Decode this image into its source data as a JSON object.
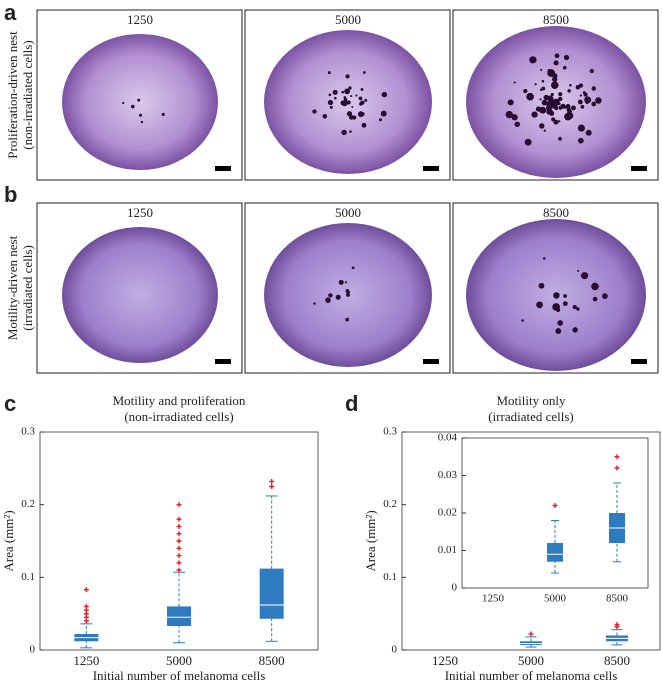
{
  "panel_a": {
    "label": "a",
    "side_label": [
      "Proliferation-driven nest",
      "(non-irradiated cells)"
    ],
    "captions": [
      "1250",
      "5000",
      "8500"
    ]
  },
  "panel_b": {
    "label": "b",
    "side_label": [
      "Motility-driven nest",
      "(irradiated cells)"
    ],
    "captions": [
      "1250",
      "5000",
      "8500"
    ]
  },
  "chart_data": [
    {
      "type": "box",
      "panel_label": "c",
      "title": "Motility and proliferation",
      "subtitle": "(non-irradiated cells)",
      "xlabel": "Initial number of melanoma cells",
      "ylabel": "Area (mm²)",
      "categories": [
        "1250",
        "5000",
        "8500"
      ],
      "color": "#2f7bbf",
      "outlier_color": "#e0202a",
      "ylim": [
        0,
        0.3
      ],
      "yticks": [
        0,
        0.1,
        0.2,
        0.3
      ],
      "low": [
        0.003,
        0.01,
        0.012
      ],
      "q1": [
        0.012,
        0.033,
        0.043
      ],
      "median": [
        0.017,
        0.045,
        0.062
      ],
      "q3": [
        0.022,
        0.06,
        0.112
      ],
      "high": [
        0.036,
        0.107,
        0.212
      ],
      "outliers": [
        [
          0.04,
          0.045,
          0.05,
          0.055,
          0.06,
          0.083
        ],
        [
          0.11,
          0.12,
          0.13,
          0.14,
          0.15,
          0.16,
          0.17,
          0.18,
          0.2
        ],
        [
          0.225,
          0.232
        ]
      ]
    },
    {
      "type": "box",
      "panel_label": "d",
      "title": "Motility only",
      "subtitle": "(irradiated cells)",
      "xlabel": "Initial number of melanoma cells",
      "ylabel": "Area (mm²)",
      "categories": [
        "1250",
        "5000",
        "8500"
      ],
      "color": "#2f7bbf",
      "outlier_color": "#e0202a",
      "ylim": [
        0,
        0.3
      ],
      "yticks": [
        0,
        0.1,
        0.2,
        0.3
      ],
      "low": [
        null,
        0.004,
        0.007
      ],
      "q1": [
        null,
        0.007,
        0.012
      ],
      "median": [
        null,
        0.009,
        0.016
      ],
      "q3": [
        null,
        0.012,
        0.02
      ],
      "high": [
        null,
        0.018,
        0.028
      ],
      "outliers": [
        [],
        [
          0.022
        ],
        [
          0.032,
          0.035
        ]
      ],
      "inset": {
        "ylim": [
          0,
          0.04
        ],
        "yticks": [
          0,
          0.01,
          0.02,
          0.03,
          0.04
        ]
      }
    }
  ]
}
